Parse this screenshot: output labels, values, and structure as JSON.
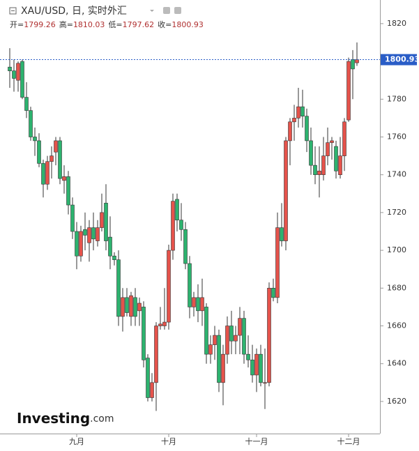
{
  "chart_data": {
    "type": "candlestick",
    "title": "XAU/USD, 日, 实时外汇",
    "ohlc_header": [
      {
        "label": "开=",
        "value": 1799.26
      },
      {
        "label": "高=",
        "value": 1810.03
      },
      {
        "label": "低=",
        "value": 1797.62
      },
      {
        "label": "收=",
        "value": 1800.93
      }
    ],
    "last_price": 1800.93,
    "watermark": "Investing",
    "watermark_suffix": ".com",
    "up_color": "#e5534b",
    "down_color": "#2db36f",
    "categories": [
      null,
      null,
      null,
      null,
      null,
      null,
      null,
      null,
      null,
      null,
      null,
      null,
      null,
      null,
      null,
      null,
      "九月",
      null,
      null,
      null,
      null,
      null,
      null,
      null,
      null,
      null,
      null,
      null,
      null,
      null,
      null,
      null,
      null,
      null,
      null,
      null,
      null,
      null,
      "十月",
      null,
      null,
      null,
      null,
      null,
      null,
      null,
      null,
      null,
      null,
      null,
      null,
      null,
      null,
      null,
      null,
      null,
      null,
      null,
      null,
      "十一月",
      null,
      null,
      null,
      null,
      null,
      null,
      null,
      null,
      null,
      null,
      null,
      null,
      null,
      null,
      null,
      null,
      null,
      null,
      null,
      null,
      null,
      "十二月",
      null,
      null
    ],
    "open": [
      1797,
      1795,
      1790,
      1800,
      1781,
      1774,
      1760,
      1758,
      1746,
      1735,
      1747,
      1752,
      1758,
      1737,
      1739,
      1724,
      1710,
      1697,
      1711,
      1704,
      1712,
      1705,
      1712,
      1725,
      1707,
      1697,
      1695,
      1665,
      1675,
      1665,
      1675,
      1668,
      1670,
      1643,
      1622,
      1630,
      1660,
      1660,
      1662,
      1700,
      1727,
      1716,
      1711,
      1693,
      1670,
      1675,
      1668,
      1670,
      1645,
      1650,
      1655,
      1630,
      1645,
      1660,
      1652,
      1655,
      1664,
      1645,
      1642,
      1634,
      1645,
      1630,
      1630,
      1680,
      1675,
      1712,
      1705,
      1758,
      1768,
      1770,
      1776,
      1771,
      1758,
      1745,
      1740,
      1740,
      1750,
      1757,
      1755,
      1740,
      1750,
      1769,
      1801,
      1799.26
    ],
    "high": [
      1807,
      1801,
      1800,
      1801,
      1789,
      1776,
      1765,
      1762,
      1748,
      1750,
      1755,
      1760,
      1760,
      1745,
      1742,
      1728,
      1715,
      1713,
      1720,
      1716,
      1720,
      1716,
      1730,
      1735,
      1718,
      1699,
      1700,
      1680,
      1680,
      1678,
      1680,
      1675,
      1673,
      1645,
      1635,
      1662,
      1670,
      1680,
      1703,
      1730,
      1730,
      1725,
      1715,
      1697,
      1678,
      1682,
      1685,
      1672,
      1655,
      1660,
      1658,
      1650,
      1665,
      1668,
      1660,
      1670,
      1668,
      1655,
      1650,
      1648,
      1650,
      1648,
      1683,
      1685,
      1720,
      1725,
      1760,
      1770,
      1777,
      1786,
      1785,
      1775,
      1765,
      1755,
      1755,
      1760,
      1765,
      1760,
      1758,
      1760,
      1770,
      1802,
      1806,
      1810.03
    ],
    "low": [
      1786,
      1784,
      1784,
      1780,
      1770,
      1758,
      1750,
      1744,
      1728,
      1732,
      1738,
      1745,
      1735,
      1730,
      1719,
      1706,
      1690,
      1694,
      1700,
      1694,
      1700,
      1702,
      1710,
      1700,
      1690,
      1692,
      1660,
      1657,
      1665,
      1660,
      1660,
      1660,
      1638,
      1620,
      1620,
      1615,
      1658,
      1658,
      1658,
      1695,
      1710,
      1705,
      1690,
      1664,
      1665,
      1662,
      1660,
      1640,
      1640,
      1642,
      1625,
      1618,
      1640,
      1645,
      1645,
      1645,
      1640,
      1638,
      1630,
      1625,
      1628,
      1616,
      1628,
      1673,
      1672,
      1702,
      1700,
      1745,
      1758,
      1765,
      1765,
      1752,
      1740,
      1735,
      1728,
      1737,
      1745,
      1748,
      1738,
      1738,
      1742,
      1768,
      1780,
      1797.62
    ],
    "close": [
      1795,
      1791,
      1799,
      1781,
      1774,
      1760,
      1758,
      1746,
      1735,
      1747,
      1750,
      1758,
      1738,
      1739,
      1724,
      1710,
      1697,
      1710,
      1708,
      1712,
      1706,
      1712,
      1720,
      1705,
      1697,
      1695,
      1665,
      1675,
      1667,
      1676,
      1665,
      1672,
      1642,
      1622,
      1630,
      1660,
      1661,
      1662,
      1700,
      1726,
      1716,
      1711,
      1693,
      1670,
      1675,
      1668,
      1675,
      1645,
      1650,
      1655,
      1630,
      1645,
      1660,
      1652,
      1655,
      1664,
      1645,
      1642,
      1634,
      1645,
      1630,
      1630,
      1680,
      1675,
      1712,
      1705,
      1758,
      1768,
      1770,
      1776,
      1771,
      1758,
      1745,
      1740,
      1742,
      1750,
      1757,
      1758,
      1742,
      1750,
      1768,
      1800,
      1796,
      1800.93
    ],
    "ylim": [
      1603,
      1832.5
    ],
    "yticks": [
      1620,
      1640,
      1660,
      1680,
      1700,
      1720,
      1740,
      1760,
      1780,
      1800,
      1820
    ]
  }
}
